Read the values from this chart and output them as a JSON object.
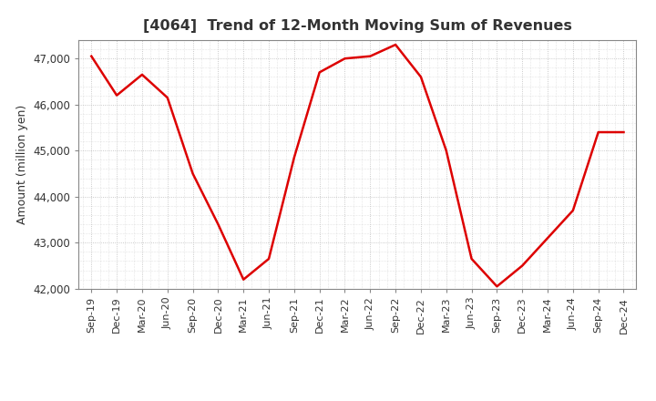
{
  "title": "[4064]  Trend of 12-Month Moving Sum of Revenues",
  "ylabel": "Amount (million yen)",
  "line_color": "#dd0000",
  "line_width": 1.8,
  "background_color": "#ffffff",
  "plot_bg_color": "#ffffff",
  "grid_color": "#bbbbbb",
  "ylim": [
    42000,
    47400
  ],
  "yticks": [
    42000,
    43000,
    44000,
    45000,
    46000,
    47000
  ],
  "labels": [
    "Sep-19",
    "Dec-19",
    "Mar-20",
    "Jun-20",
    "Sep-20",
    "Dec-20",
    "Mar-21",
    "Jun-21",
    "Sep-21",
    "Dec-21",
    "Mar-22",
    "Jun-22",
    "Sep-22",
    "Dec-22",
    "Mar-23",
    "Jun-23",
    "Sep-23",
    "Dec-23",
    "Mar-24",
    "Jun-24",
    "Sep-24",
    "Dec-24"
  ],
  "values": [
    47050,
    46200,
    46650,
    46150,
    44500,
    43400,
    42200,
    42650,
    44850,
    46700,
    47000,
    47050,
    47300,
    46600,
    45000,
    42650,
    42050,
    42500,
    43100,
    43700,
    45400,
    45400
  ]
}
